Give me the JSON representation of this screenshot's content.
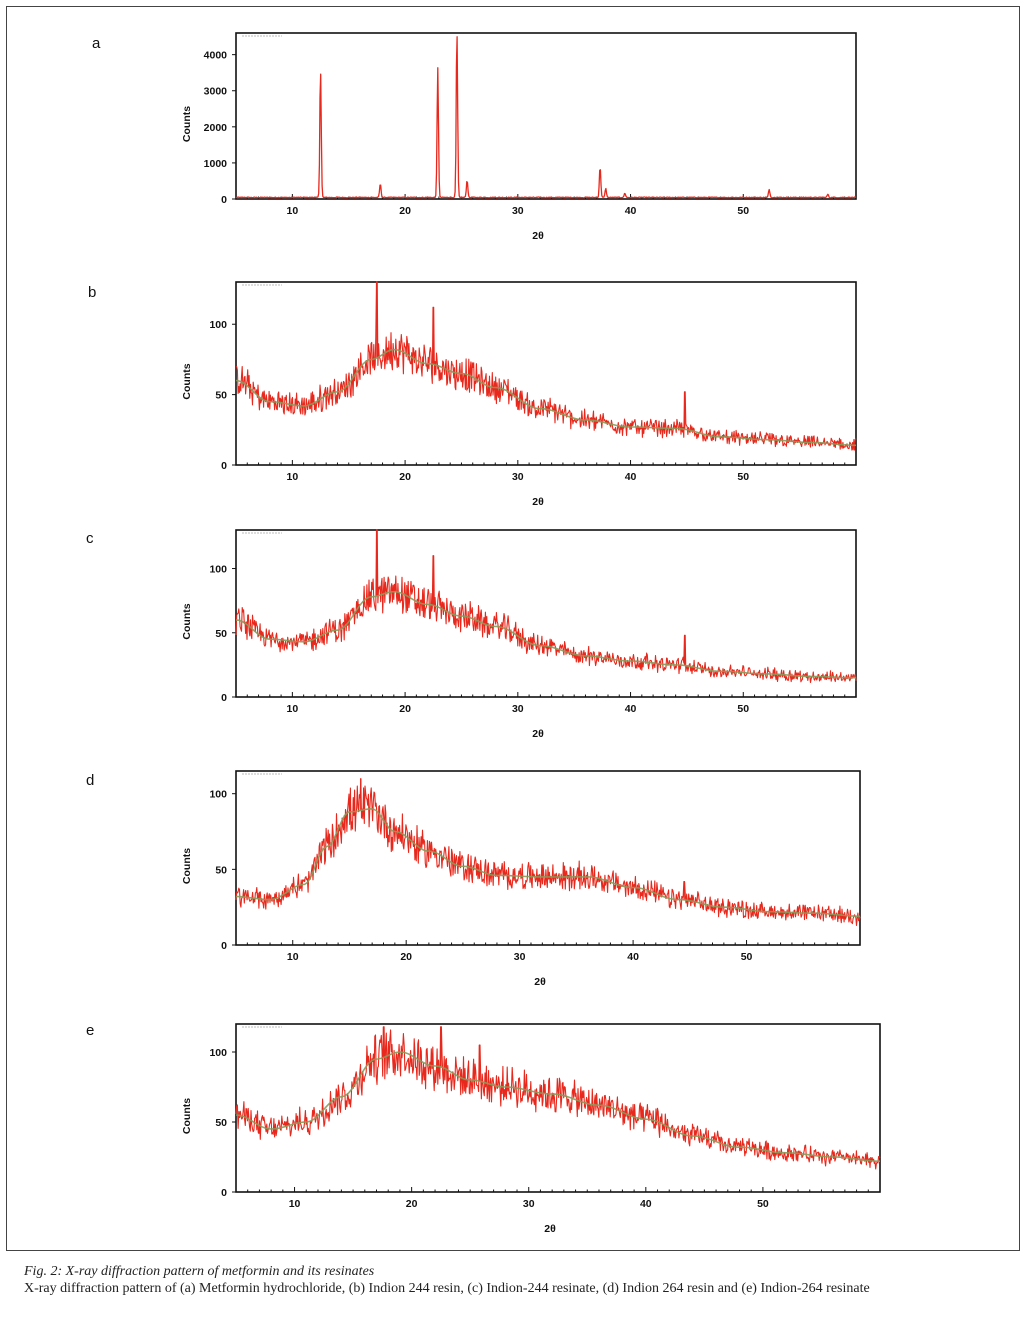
{
  "caption": {
    "title": "Fig. 2: X-ray diffraction pattern of metformin and its resinates",
    "body": "X-ray diffraction pattern of (a) Metformin hydrochloride, (b) Indion 244 resin, (c) Indion-244 resinate, (d) Indion 264 resin and (e) Indion-264 resinate"
  },
  "colors": {
    "trace": "#e8281c",
    "fit": "#8a9a5b",
    "axis": "#111111"
  },
  "chart_data": [
    {
      "panel": "a",
      "type": "line",
      "xlabel": "2θ",
      "ylabel": "Counts",
      "xlim": [
        5,
        60
      ],
      "ylim": [
        0,
        4600
      ],
      "xticks": [
        10,
        20,
        30,
        40,
        50
      ],
      "yticks": [
        0,
        1000,
        2000,
        3000,
        4000
      ],
      "pattern": "crystalline",
      "baseline": 30,
      "peaks": [
        {
          "x": 12.5,
          "y": 3550
        },
        {
          "x": 17.8,
          "y": 380
        },
        {
          "x": 22.9,
          "y": 3600
        },
        {
          "x": 24.6,
          "y": 4600
        },
        {
          "x": 25.5,
          "y": 480
        },
        {
          "x": 37.3,
          "y": 850
        },
        {
          "x": 37.8,
          "y": 250
        },
        {
          "x": 39.5,
          "y": 120
        },
        {
          "x": 52.3,
          "y": 220
        },
        {
          "x": 57.5,
          "y": 90
        }
      ]
    },
    {
      "panel": "b",
      "type": "line",
      "xlabel": "2θ",
      "ylabel": "Counts",
      "xlim": [
        5,
        60
      ],
      "ylim": [
        0,
        130
      ],
      "xticks": [
        10,
        20,
        30,
        40,
        50
      ],
      "yticks": [
        0,
        50,
        100
      ],
      "pattern": "amorphous",
      "envelope": [
        [
          5,
          60
        ],
        [
          8,
          45
        ],
        [
          11,
          42
        ],
        [
          14,
          52
        ],
        [
          17,
          75
        ],
        [
          19,
          82
        ],
        [
          22,
          72
        ],
        [
          25,
          65
        ],
        [
          28,
          55
        ],
        [
          32,
          40
        ],
        [
          36,
          32
        ],
        [
          40,
          27
        ],
        [
          44,
          26
        ],
        [
          48,
          20
        ],
        [
          52,
          18
        ],
        [
          56,
          16
        ],
        [
          60,
          14
        ]
      ],
      "spikes": [
        {
          "x": 17.5,
          "y": 130
        },
        {
          "x": 22.5,
          "y": 112
        },
        {
          "x": 44.8,
          "y": 52
        }
      ]
    },
    {
      "panel": "c",
      "type": "line",
      "xlabel": "2θ",
      "ylabel": "Counts",
      "xlim": [
        5,
        60
      ],
      "ylim": [
        0,
        130
      ],
      "xticks": [
        10,
        20,
        30,
        40,
        50
      ],
      "yticks": [
        0,
        50,
        100
      ],
      "pattern": "amorphous",
      "envelope": [
        [
          5,
          60
        ],
        [
          8,
          45
        ],
        [
          11,
          43
        ],
        [
          14,
          52
        ],
        [
          17,
          78
        ],
        [
          19,
          82
        ],
        [
          22,
          72
        ],
        [
          25,
          63
        ],
        [
          28,
          55
        ],
        [
          32,
          40
        ],
        [
          36,
          32
        ],
        [
          40,
          28
        ],
        [
          44,
          25
        ],
        [
          48,
          20
        ],
        [
          52,
          18
        ],
        [
          56,
          16
        ],
        [
          60,
          15
        ]
      ],
      "spikes": [
        {
          "x": 17.5,
          "y": 130
        },
        {
          "x": 22.5,
          "y": 110
        },
        {
          "x": 44.8,
          "y": 48
        }
      ]
    },
    {
      "panel": "d",
      "type": "line",
      "xlabel": "2θ",
      "ylabel": "Counts",
      "xlim": [
        5,
        60
      ],
      "ylim": [
        0,
        115
      ],
      "xticks": [
        10,
        20,
        30,
        40,
        50
      ],
      "yticks": [
        0,
        50,
        100
      ],
      "pattern": "amorphous",
      "envelope": [
        [
          5,
          32
        ],
        [
          8,
          30
        ],
        [
          11,
          40
        ],
        [
          13,
          65
        ],
        [
          15,
          88
        ],
        [
          17,
          90
        ],
        [
          19,
          75
        ],
        [
          22,
          62
        ],
        [
          25,
          52
        ],
        [
          28,
          46
        ],
        [
          32,
          45
        ],
        [
          36,
          45
        ],
        [
          40,
          38
        ],
        [
          44,
          30
        ],
        [
          48,
          25
        ],
        [
          52,
          22
        ],
        [
          56,
          21
        ],
        [
          60,
          19
        ]
      ],
      "spikes": [
        {
          "x": 16,
          "y": 110
        },
        {
          "x": 44.5,
          "y": 42
        }
      ]
    },
    {
      "panel": "e",
      "type": "line",
      "xlabel": "2θ",
      "ylabel": "Counts",
      "xlim": [
        5,
        60
      ],
      "ylim": [
        0,
        120
      ],
      "xticks": [
        10,
        20,
        30,
        40,
        50
      ],
      "yticks": [
        0,
        50,
        100
      ],
      "pattern": "amorphous",
      "envelope": [
        [
          5,
          55
        ],
        [
          8,
          45
        ],
        [
          11,
          50
        ],
        [
          14,
          68
        ],
        [
          17,
          95
        ],
        [
          19,
          100
        ],
        [
          22,
          90
        ],
        [
          25,
          80
        ],
        [
          28,
          75
        ],
        [
          32,
          70
        ],
        [
          36,
          62
        ],
        [
          40,
          52
        ],
        [
          44,
          40
        ],
        [
          48,
          32
        ],
        [
          52,
          28
        ],
        [
          56,
          25
        ],
        [
          60,
          22
        ]
      ],
      "spikes": [
        {
          "x": 17.6,
          "y": 118
        },
        {
          "x": 22.5,
          "y": 118
        },
        {
          "x": 25.8,
          "y": 105
        }
      ]
    }
  ]
}
